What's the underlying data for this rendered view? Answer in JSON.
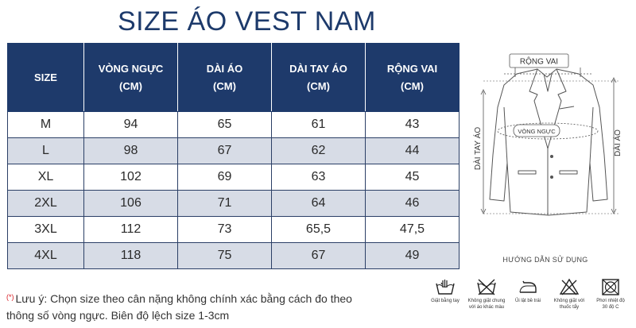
{
  "title": "SIZE ÁO VEST NAM",
  "table": {
    "headers": [
      {
        "line1": "SIZE",
        "line2": ""
      },
      {
        "line1": "VÒNG NGỰC",
        "line2": "(CM)"
      },
      {
        "line1": "DÀI ÁO",
        "line2": "(CM)"
      },
      {
        "line1": "DÀI TAY ÁO",
        "line2": "(CM)"
      },
      {
        "line1": "RỘNG VAI",
        "line2": "(CM)"
      }
    ],
    "rows": [
      [
        "M",
        "94",
        "65",
        "61",
        "43"
      ],
      [
        "L",
        "98",
        "67",
        "62",
        "44"
      ],
      [
        "XL",
        "102",
        "69",
        "63",
        "45"
      ],
      [
        "2XL",
        "106",
        "71",
        "64",
        "46"
      ],
      [
        "3XL",
        "112",
        "73",
        "65,5",
        "47,5"
      ],
      [
        "4XL",
        "118",
        "75",
        "67",
        "49"
      ]
    ]
  },
  "note": {
    "marker": "(*)",
    "line1": "Lưu ý: Chọn size theo cân nặng không chính xác bằng cách đo theo",
    "line2": "thông số vòng ngực. Biên độ lệch size 1-3cm"
  },
  "diagram": {
    "shoulder_label": "RỘNG VAI",
    "chest_label": "VÒNG NGỰC",
    "left_length_label": "DÀI TAY ÁO",
    "right_length_label": "DÀI ÁO"
  },
  "guide_title": "HƯỚNG DẪN SỬ DỤNG",
  "care": [
    {
      "icon": "hand-wash-icon",
      "label1": "Giặt bằng tay",
      "label2": ""
    },
    {
      "icon": "no-wash-icon",
      "label1": "Không giặt chung",
      "label2": "với áo khác màu"
    },
    {
      "icon": "iron-icon",
      "label1": "Ủi lật bề trái",
      "label2": ""
    },
    {
      "icon": "no-bleach-icon",
      "label1": "Không giặt với",
      "label2": "thuốc tẩy"
    },
    {
      "icon": "dry-icon",
      "label1": "Phơi nhiệt độ",
      "label2": "30 độ C"
    }
  ],
  "colors": {
    "header_bg": "#1e3a6b",
    "alt_row": "#d7dce6",
    "title": "#1d3a6b",
    "note_marker": "#d81f26"
  }
}
